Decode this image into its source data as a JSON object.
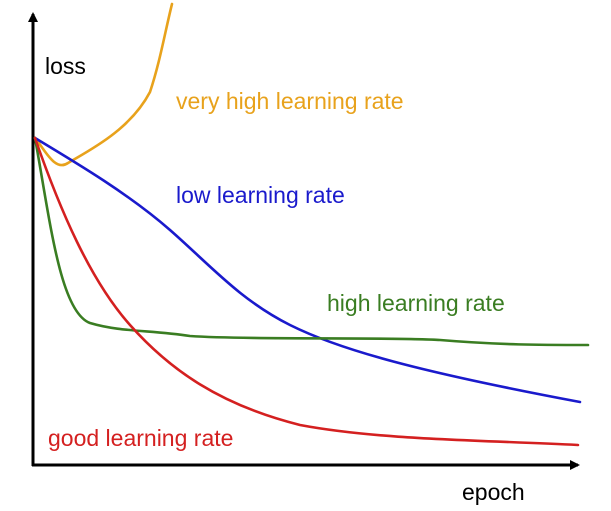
{
  "axes": {
    "y_label": "loss",
    "x_label": "epoch"
  },
  "curves": [
    {
      "label": "very high learning rate"
    },
    {
      "label": "low learning rate"
    },
    {
      "label": "high learning rate"
    },
    {
      "label": "good learning rate"
    }
  ]
}
